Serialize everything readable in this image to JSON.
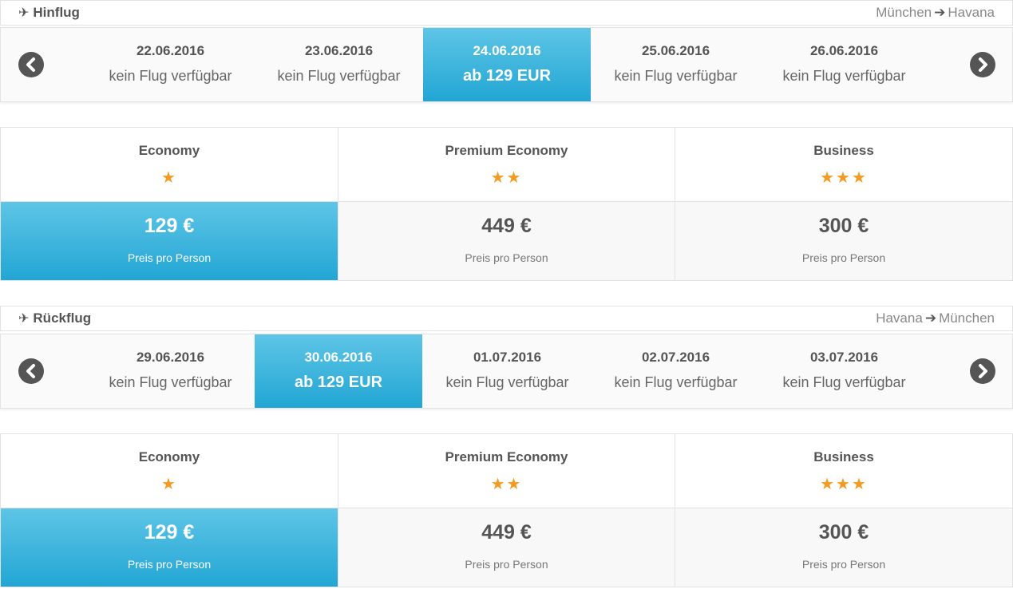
{
  "outbound": {
    "title": "Hinflug",
    "route_from": "München",
    "route_to": "Havana",
    "dates": [
      {
        "date": "22.06.2016",
        "status": "kein Flug verfügbar"
      },
      {
        "date": "23.06.2016",
        "status": "kein Flug verfügbar"
      },
      {
        "date": "24.06.2016",
        "status": "ab 129 EUR"
      },
      {
        "date": "25.06.2016",
        "status": "kein Flug verfügbar"
      },
      {
        "date": "26.06.2016",
        "status": "kein Flug verfügbar"
      }
    ],
    "selected_date_index": 2,
    "classes": [
      {
        "name": "Economy",
        "stars": "★",
        "price": "129 €",
        "per": "Preis pro Person"
      },
      {
        "name": "Premium Economy",
        "stars": "★★",
        "price": "449 €",
        "per": "Preis pro Person"
      },
      {
        "name": "Business",
        "stars": "★★★",
        "price": "300 €",
        "per": "Preis pro Person"
      }
    ],
    "selected_class_index": 0
  },
  "return": {
    "title": "Rückflug",
    "route_from": "Havana",
    "route_to": "München",
    "dates": [
      {
        "date": "29.06.2016",
        "status": "kein Flug verfügbar"
      },
      {
        "date": "30.06.2016",
        "status": "ab 129 EUR"
      },
      {
        "date": "01.07.2016",
        "status": "kein Flug verfügbar"
      },
      {
        "date": "02.07.2016",
        "status": "kein Flug verfügbar"
      },
      {
        "date": "03.07.2016",
        "status": "kein Flug verfügbar"
      }
    ],
    "selected_date_index": 1,
    "classes": [
      {
        "name": "Economy",
        "stars": "★",
        "price": "129 €",
        "per": "Preis pro Person"
      },
      {
        "name": "Premium Economy",
        "stars": "★★",
        "price": "449 €",
        "per": "Preis pro Person"
      },
      {
        "name": "Business",
        "stars": "★★★",
        "price": "300 €",
        "per": "Preis pro Person"
      }
    ],
    "selected_class_index": 0
  },
  "icons": {
    "section": "plane-icon",
    "route_arrow": "arrow-right-icon",
    "prev": "chevron-left-icon",
    "next": "chevron-right-icon",
    "star": "star-icon"
  },
  "colors": {
    "selected": "#22a6d4",
    "star": "#f49a21",
    "text": "#555555"
  }
}
